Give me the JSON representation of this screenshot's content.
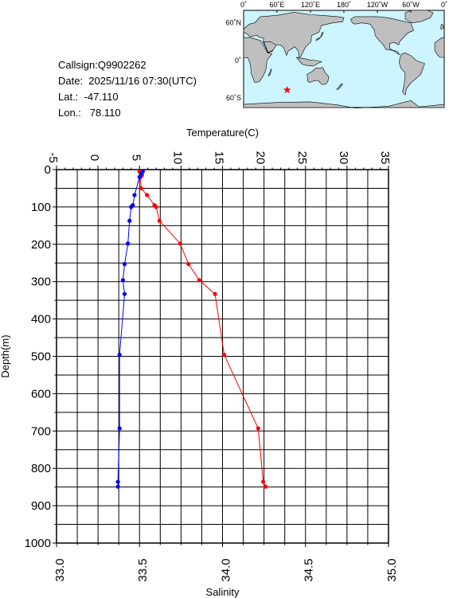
{
  "info": {
    "callsign": "Callsign:Q9902262",
    "date": "Date:  2025/11/16 07:30(UTC)",
    "lat": "Lat.:  -47.110",
    "lon": "Lon.:   78.110"
  },
  "map": {
    "top_labels": [
      "0˚",
      "60˚E",
      "120˚E",
      "180˚",
      "120˚W",
      "60˚W",
      "0˚"
    ],
    "left_labels": [
      "60˚N",
      "0˚",
      "60˚S"
    ],
    "ocean_color": "#ccf5ff",
    "land_color": "#bfbfbf",
    "marker": {
      "lon": 78.11,
      "lat": -47.11,
      "color": "#ff0000",
      "icon": "star-icon"
    }
  },
  "chart_data": {
    "type": "line",
    "top_axis_title": "Temperature(C)",
    "bottom_axis_title": "Salinity",
    "left_axis_title": "Depth(m)",
    "temperature_ticks": [
      "-5",
      "0",
      "5",
      "10",
      "15",
      "20",
      "25",
      "30",
      "35"
    ],
    "salinity_ticks": [
      "33.0",
      "33.5",
      "34.0",
      "34.5",
      "35.0"
    ],
    "depth_ticks": [
      "0",
      "100",
      "200",
      "300",
      "400",
      "500",
      "600",
      "700",
      "800",
      "900",
      "1000"
    ],
    "xlim_temperature": [
      -5,
      35
    ],
    "xlim_salinity": [
      33.0,
      35.0
    ],
    "ylim_depth": [
      0,
      1000
    ],
    "series": [
      {
        "color": "#ff0000",
        "points": [
          {
            "x": 5.0,
            "y": 5
          },
          {
            "x": 5.2,
            "y": 10
          },
          {
            "x": 5.3,
            "y": 15
          },
          {
            "x": 5.1,
            "y": 20
          },
          {
            "x": 5.2,
            "y": 50
          },
          {
            "x": 5.9,
            "y": 68
          },
          {
            "x": 6.8,
            "y": 95
          },
          {
            "x": 7.0,
            "y": 100
          },
          {
            "x": 7.4,
            "y": 137
          },
          {
            "x": 9.9,
            "y": 198
          },
          {
            "x": 10.9,
            "y": 253
          },
          {
            "x": 12.2,
            "y": 296
          },
          {
            "x": 14.1,
            "y": 333
          },
          {
            "x": 15.2,
            "y": 496
          },
          {
            "x": 19.3,
            "y": 693
          },
          {
            "x": 19.9,
            "y": 836
          },
          {
            "x": 20.2,
            "y": 849
          }
        ]
      },
      {
        "color": "#0000ff",
        "points": [
          {
            "x": 33.52,
            "y": 5
          },
          {
            "x": 33.51,
            "y": 10
          },
          {
            "x": 33.5,
            "y": 20
          },
          {
            "x": 33.47,
            "y": 68
          },
          {
            "x": 33.46,
            "y": 95
          },
          {
            "x": 33.45,
            "y": 100
          },
          {
            "x": 33.44,
            "y": 137
          },
          {
            "x": 33.43,
            "y": 198
          },
          {
            "x": 33.41,
            "y": 253
          },
          {
            "x": 33.4,
            "y": 296
          },
          {
            "x": 33.41,
            "y": 333
          },
          {
            "x": 33.38,
            "y": 496
          },
          {
            "x": 33.38,
            "y": 693
          },
          {
            "x": 33.37,
            "y": 836
          },
          {
            "x": 33.37,
            "y": 849
          }
        ]
      }
    ]
  }
}
